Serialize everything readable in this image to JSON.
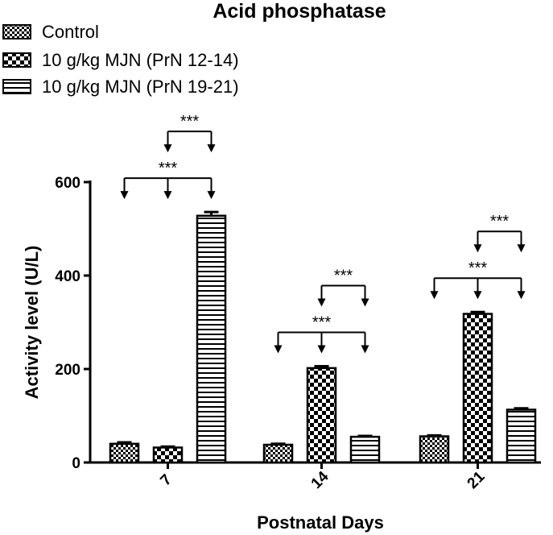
{
  "chart_data": {
    "type": "bar",
    "title": "Acid phosphatase",
    "xlabel": "Postnatal Days",
    "ylabel": "Activity level (U/L)",
    "categories": [
      "7",
      "14",
      "21"
    ],
    "ylim": [
      0,
      600
    ],
    "yticks": [
      "0",
      "200",
      "400",
      "600"
    ],
    "grid": false,
    "legend_position": "top-left",
    "series": [
      {
        "name": "Control",
        "pattern": "small-checker",
        "values": [
          40,
          38,
          56
        ],
        "errors": [
          3,
          2,
          2
        ]
      },
      {
        "name": "10 g/kg MJN (PrN 12-14)",
        "pattern": "large-checker",
        "values": [
          32,
          202,
          318
        ],
        "errors": [
          2,
          4,
          4
        ]
      },
      {
        "name": "10 g/kg MJN (PrN 19-21)",
        "pattern": "horizontal-lines",
        "values": [
          528,
          55,
          113
        ],
        "errors": [
          8,
          2,
          3
        ]
      }
    ],
    "significance": [
      {
        "category": "7",
        "from_series": 0,
        "to_series": 2,
        "level": 1,
        "label": "***"
      },
      {
        "category": "7",
        "from_series": 1,
        "to_series": 2,
        "level": 2,
        "label": "***"
      },
      {
        "category": "14",
        "from_series": 0,
        "to_series": 2,
        "level": 1,
        "label": "***"
      },
      {
        "category": "14",
        "from_series": 1,
        "to_series": 2,
        "level": 2,
        "label": "***"
      },
      {
        "category": "21",
        "from_series": 0,
        "to_series": 2,
        "level": 1,
        "label": "***"
      },
      {
        "category": "21",
        "from_series": 1,
        "to_series": 2,
        "level": 2,
        "label": "***"
      }
    ]
  }
}
